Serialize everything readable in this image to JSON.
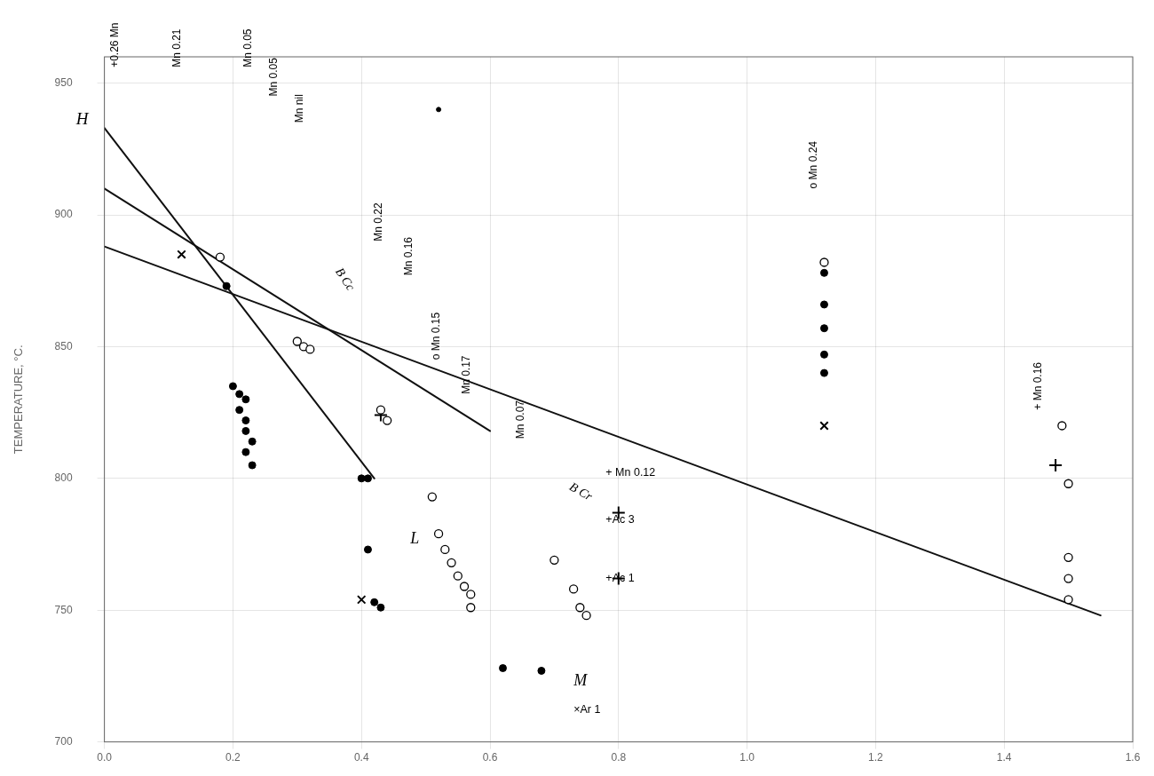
{
  "chart_data": {
    "type": "scatter",
    "ylabel": "TEMPERATURE, °C.",
    "xlim": [
      0,
      1.6
    ],
    "ylim": [
      700,
      960
    ],
    "xticks": [
      {
        "value": 0,
        "label": "0.0"
      },
      0.2,
      0.4,
      0.6,
      0.8,
      {
        "value": 1.0,
        "label": "1.0"
      },
      1.2,
      1.4,
      1.6
    ],
    "yticks": [
      700,
      750,
      800,
      850,
      900,
      950
    ],
    "grid": true,
    "series": [
      {
        "type": "line",
        "color": "#111111",
        "x": [
          0.0,
          0.42
        ],
        "values": [
          933,
          800
        ]
      },
      {
        "type": "line",
        "color": "#111111",
        "x": [
          0.0,
          0.6
        ],
        "values": [
          910,
          818
        ]
      },
      {
        "type": "line",
        "color": "#111111",
        "x": [
          0.0,
          1.55
        ],
        "values": [
          888,
          748
        ]
      },
      {
        "type": "scatter",
        "marker": "circle",
        "color": "#000000",
        "x": [
          0.19,
          0.2,
          0.21,
          0.21,
          0.22,
          0.22,
          0.22,
          0.23,
          0.22,
          0.23,
          0.4,
          0.41,
          0.41,
          0.42,
          0.43,
          0.62,
          1.12,
          1.12,
          1.12,
          1.12,
          1.12,
          0.68
        ],
        "values": [
          873,
          835,
          832,
          826,
          830,
          822,
          818,
          814,
          810,
          805,
          800,
          800,
          773,
          753,
          751,
          728,
          878,
          866,
          857,
          847,
          840,
          727
        ]
      },
      {
        "type": "scatter",
        "marker": "open_circle",
        "color": "#000000",
        "x": [
          0.18,
          0.3,
          0.31,
          0.32,
          0.43,
          0.44,
          0.51,
          0.52,
          0.53,
          0.54,
          0.55,
          0.56,
          0.57,
          0.57,
          0.7,
          0.73,
          0.74,
          0.75,
          1.12,
          1.49,
          1.5,
          1.5,
          1.5,
          1.5
        ],
        "values": [
          884,
          852,
          850,
          849,
          826,
          822,
          793,
          779,
          773,
          768,
          763,
          759,
          756,
          751,
          769,
          758,
          751,
          748,
          882,
          820,
          798,
          770,
          762,
          754
        ]
      },
      {
        "type": "scatter",
        "marker": "x",
        "color": "#000000",
        "x": [
          0.12,
          0.4,
          1.12
        ],
        "values": [
          885,
          754,
          820
        ]
      },
      {
        "type": "scatter",
        "marker": "plus",
        "color": "#000000",
        "x": [
          0.43,
          0.8,
          0.8,
          1.48
        ],
        "values": [
          824,
          787,
          762,
          805
        ]
      },
      {
        "type": "scatter",
        "marker": "dot",
        "color": "#000000",
        "x": [
          0.52
        ],
        "values": [
          940
        ]
      }
    ],
    "annotations": [
      {
        "text": "H",
        "x": -0.025,
        "y": 933
      },
      {
        "text": "+0.26 Mn",
        "x": 0.008,
        "y": 956
      },
      {
        "text": "Mn 0.21",
        "x": 0.105,
        "y": 956
      },
      {
        "text": "Mn 0.05",
        "x": 0.215,
        "y": 956
      },
      {
        "text": "Mn 0.05",
        "x": 0.255,
        "y": 945
      },
      {
        "text": "Mn nil",
        "x": 0.295,
        "y": 935
      },
      {
        "text": "B Cc",
        "x": 0.355,
        "y": 878
      },
      {
        "text": "Mn 0.22",
        "x": 0.418,
        "y": 890
      },
      {
        "text": "Mn 0.16",
        "x": 0.465,
        "y": 877
      },
      {
        "text": "B Cr",
        "x": 0.72,
        "y": 795
      },
      {
        "text": "L",
        "x": 0.476,
        "y": 774
      },
      {
        "text": "M",
        "x": 0.73,
        "y": 720
      },
      {
        "text": "×Ar 1",
        "x": 0.73,
        "y": 710
      },
      {
        "text": "o Mn 0.15",
        "x": 0.508,
        "y": 845
      },
      {
        "text": "Mn 0.17",
        "x": 0.555,
        "y": 832
      },
      {
        "text": "Mn 0.07",
        "x": 0.64,
        "y": 815
      },
      {
        "text": "+ Mn 0.12",
        "x": 0.78,
        "y": 800
      },
      {
        "text": "+Ac 3",
        "x": 0.78,
        "y": 782
      },
      {
        "text": "+Ac 1",
        "x": 0.78,
        "y": 760
      },
      {
        "text": "o Mn 0.24",
        "x": 1.095,
        "y": 910
      },
      {
        "text": "+ Mn 0.16",
        "x": 1.445,
        "y": 826
      }
    ]
  }
}
